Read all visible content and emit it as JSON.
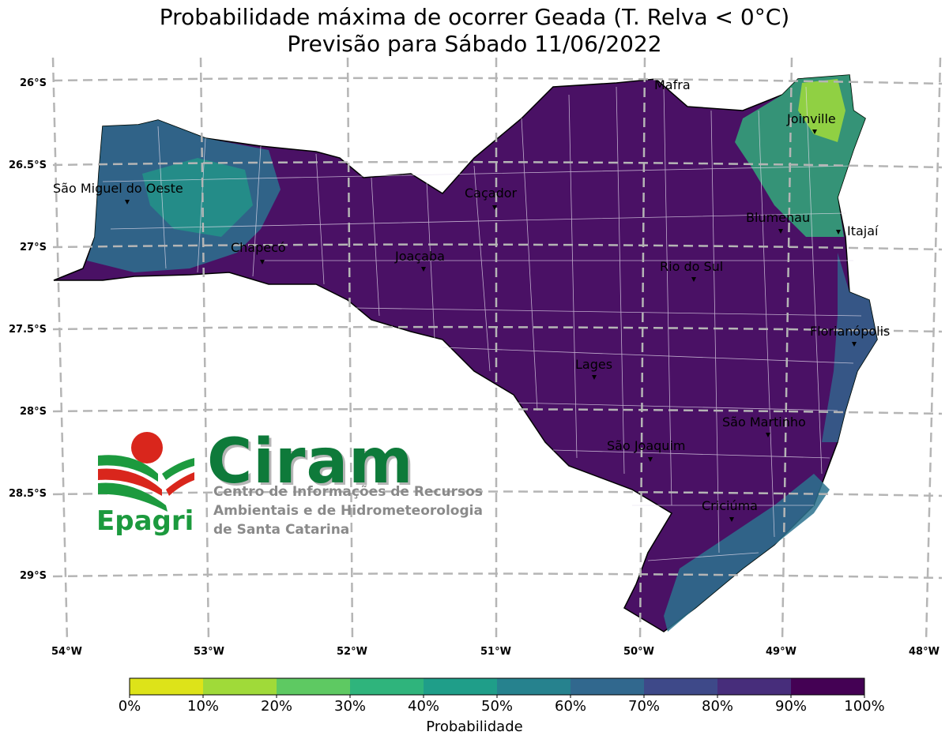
{
  "title": {
    "line1": "Probabilidade máxima de ocorrer Geada (T. Relva < 0°C)",
    "line2": "Previsão para Sábado 11/06/2022"
  },
  "lat_labels": [
    "26°S",
    "26.5°S",
    "27°S",
    "27.5°S",
    "28°S",
    "28.5°S",
    "29°S"
  ],
  "lon_labels": [
    "54°W",
    "53°W",
    "52°W",
    "51°W",
    "50°W",
    "49°W",
    "48°W"
  ],
  "cities": [
    {
      "name": "Mafra"
    },
    {
      "name": "Joinville"
    },
    {
      "name": "São Miguel do Oeste"
    },
    {
      "name": "Caçador"
    },
    {
      "name": "Blumenau"
    },
    {
      "name": "Itajaí"
    },
    {
      "name": "Chapecó"
    },
    {
      "name": "Joaçaba"
    },
    {
      "name": "Rio do Sul"
    },
    {
      "name": "Florianópolis"
    },
    {
      "name": "Lages"
    },
    {
      "name": "São Martinho"
    },
    {
      "name": "São Joaquim"
    },
    {
      "name": "Criciúma"
    }
  ],
  "colorbar": {
    "label": "Probabilidade",
    "ticks": [
      "0%",
      "10%",
      "20%",
      "30%",
      "40%",
      "50%",
      "60%",
      "70%",
      "80%",
      "90%",
      "100%"
    ],
    "colors": [
      "#dde319",
      "#a0da39",
      "#5ec962",
      "#2fb47c",
      "#1f9e89",
      "#26828e",
      "#31688e",
      "#3e4989",
      "#472d7b",
      "#440154"
    ]
  },
  "logo": {
    "name": "Ciram",
    "org": "Epagri",
    "subtitle_lines": [
      "Centro de Informações de Recursos",
      "Ambientais e de Hidrometeorologia",
      "de Santa Catarina"
    ]
  },
  "map_colors": {
    "high_probability": "#4a1165",
    "mid_probability": "#2c728e",
    "low_probability": "#5ec962"
  }
}
